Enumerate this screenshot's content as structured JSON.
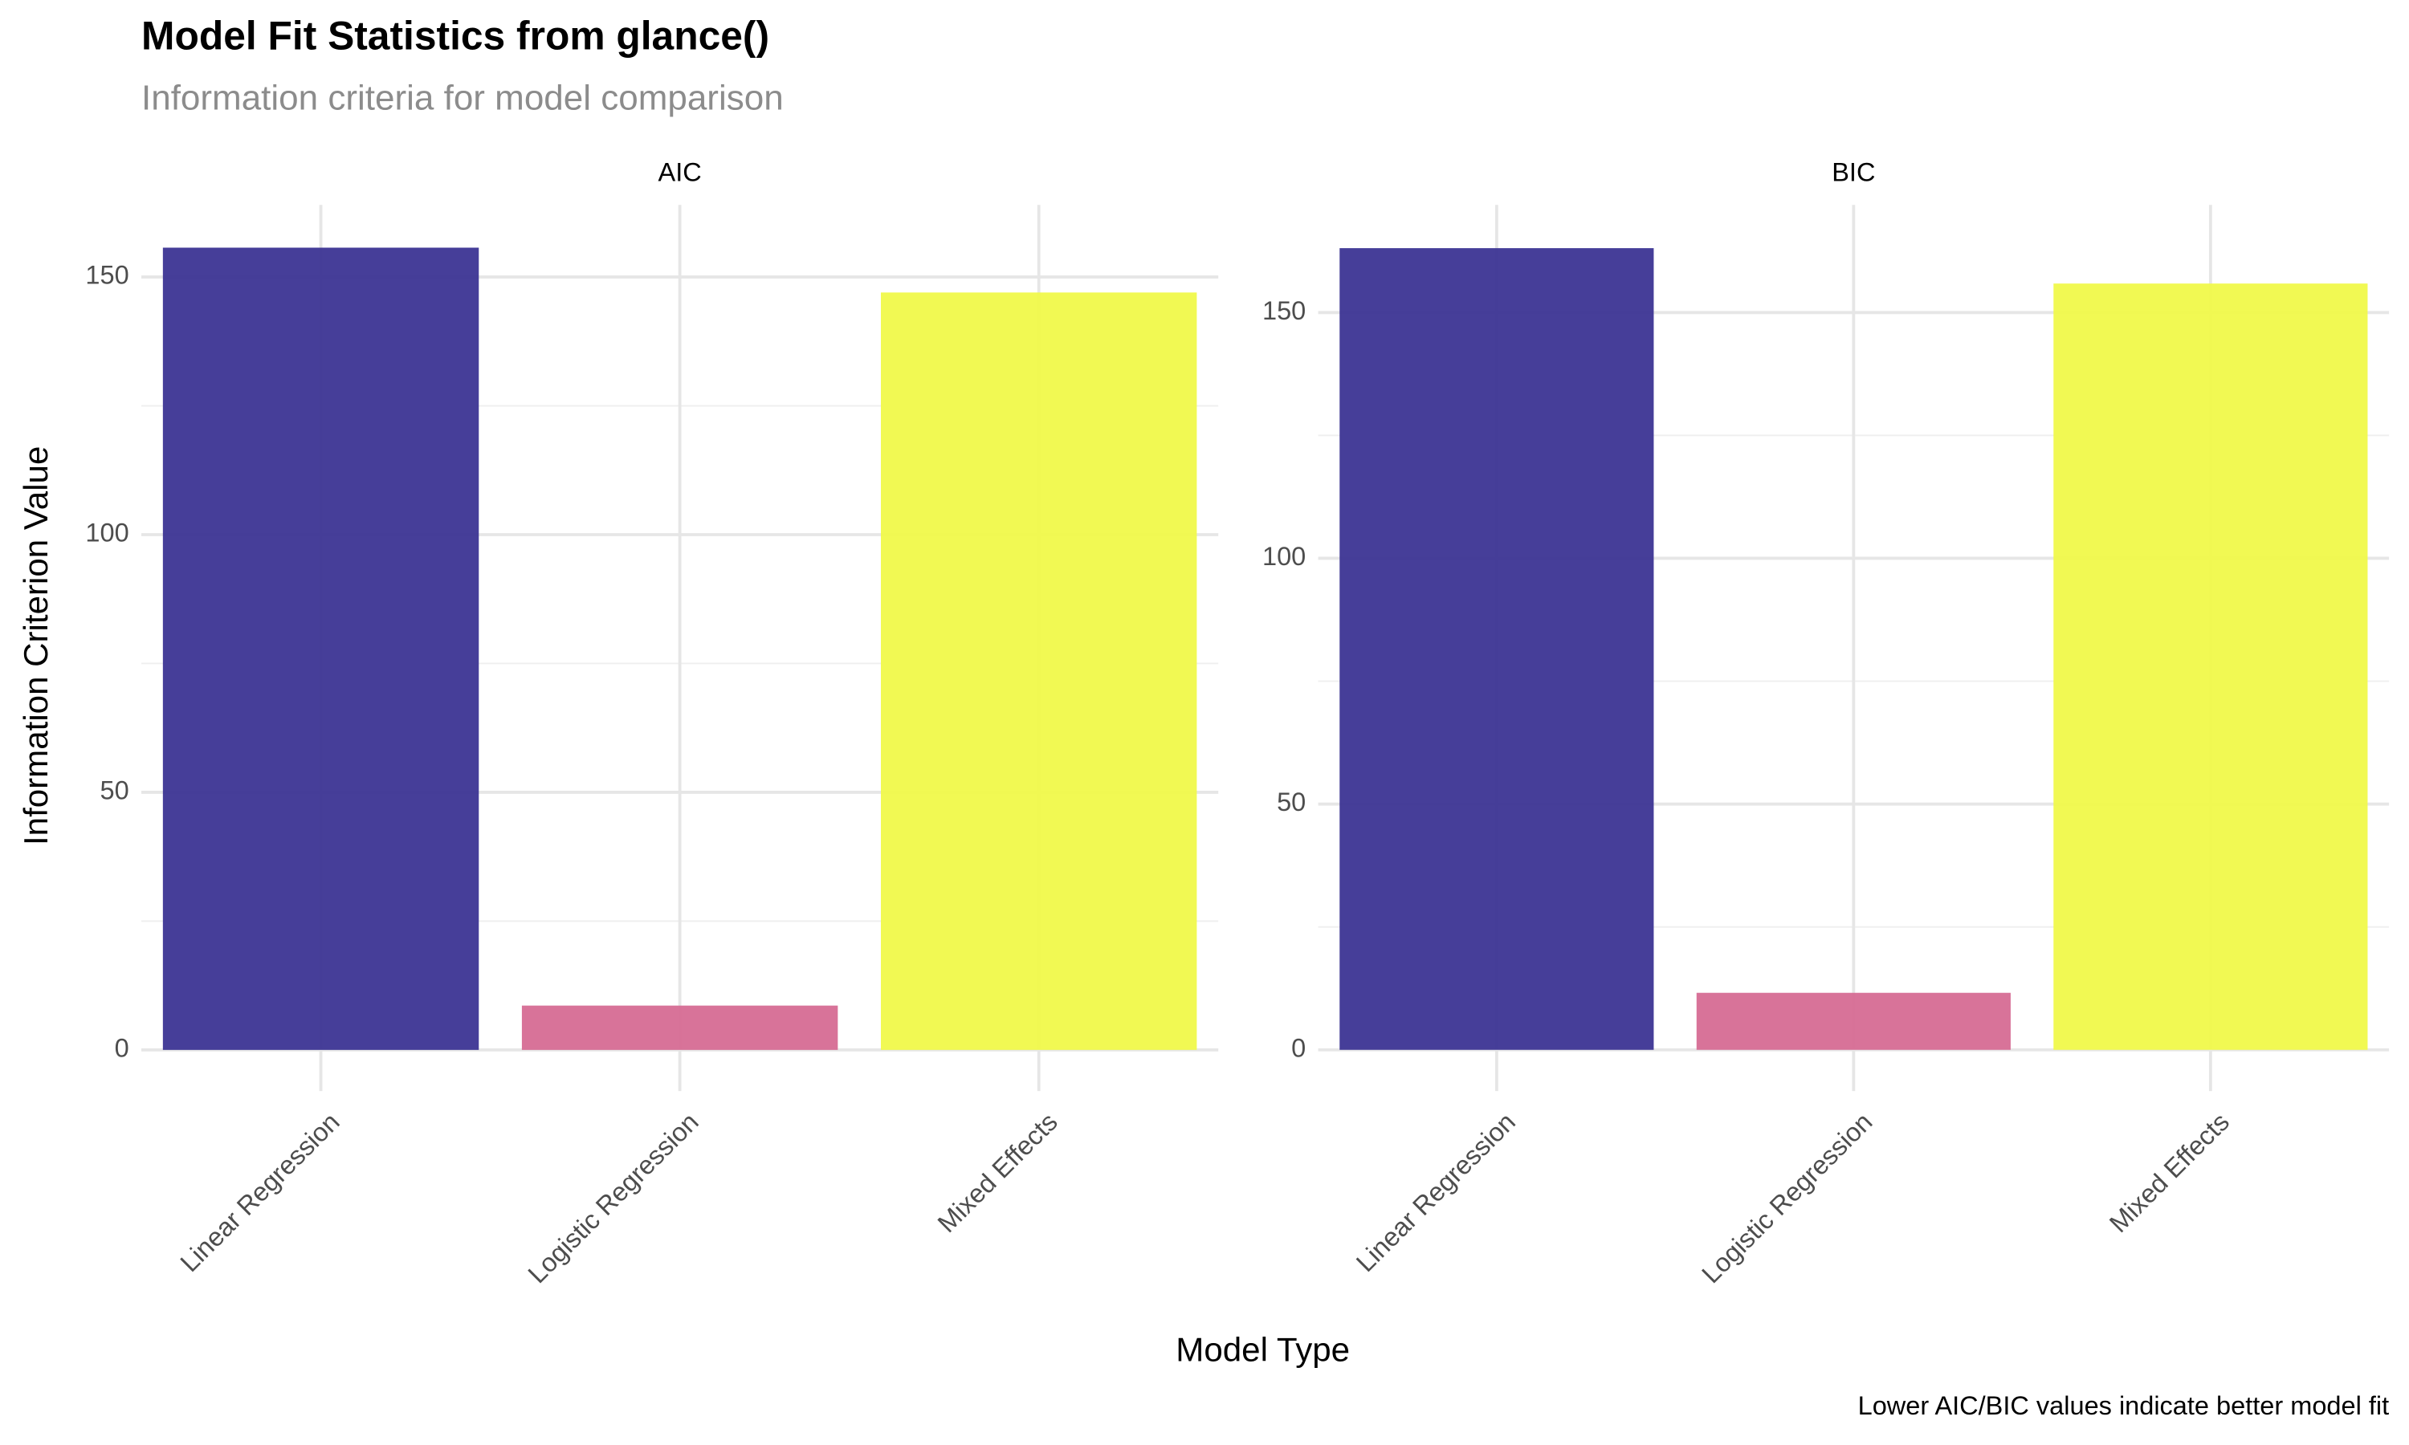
{
  "chart_data": {
    "type": "bar",
    "title": "Model Fit Statistics from glance()",
    "subtitle": "Information criteria for model comparison",
    "x_label": "Model Type",
    "y_label": "Information Criterion Value",
    "caption": "Lower AIC/BIC values indicate better model fit",
    "categories": [
      "Linear Regression",
      "Logistic Regression",
      "Mixed Effects"
    ],
    "colors": [
      "#3c3494",
      "#d66b93",
      "#f0f94a"
    ],
    "grid": true,
    "facets": [
      {
        "name": "AIC",
        "values": [
          155.7,
          8.6,
          147.0
        ],
        "ylim": [
          -8,
          164
        ],
        "yticks": [
          0,
          50,
          100,
          150
        ],
        "minor_yticks": [
          25,
          75,
          125
        ]
      },
      {
        "name": "BIC",
        "values": [
          163.1,
          11.6,
          155.9
        ],
        "ylim": [
          -8.4,
          171.9
        ],
        "yticks": [
          0,
          50,
          100,
          150
        ],
        "minor_yticks": [
          25,
          75,
          125
        ]
      }
    ]
  }
}
